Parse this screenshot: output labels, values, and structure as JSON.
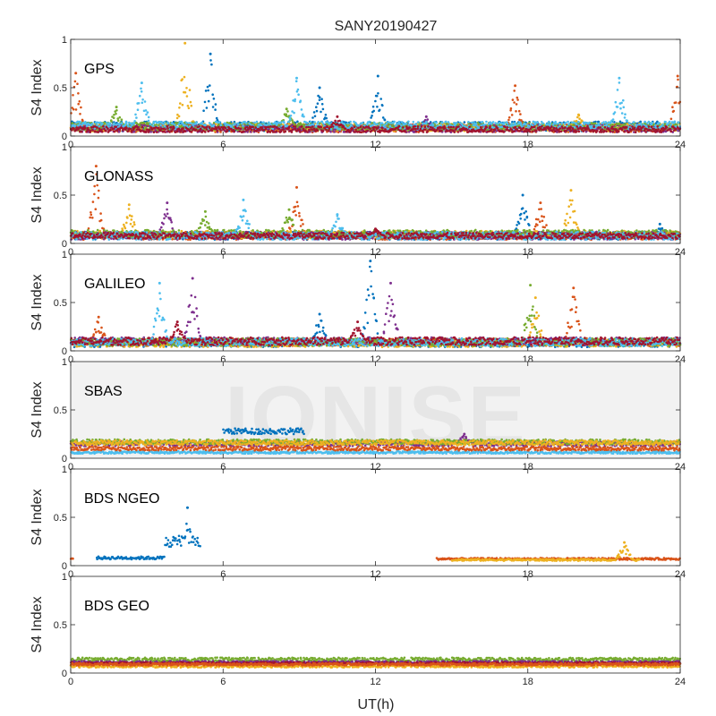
{
  "chart_data": {
    "type": "scatter",
    "title": "SANY20190427",
    "xlabel": "UT(h)",
    "ylabel": "S4 Index",
    "xlim": [
      0,
      24
    ],
    "ylim": [
      0,
      1
    ],
    "x_ticks": [
      "0",
      "6",
      "12",
      "18",
      "24"
    ],
    "y_ticks": [
      "0",
      "0.5",
      "1"
    ],
    "watermark": "IONISE",
    "series_colors": [
      "#0072BD",
      "#D95319",
      "#EDB120",
      "#7E2F8E",
      "#77AC30",
      "#4DBEEE",
      "#A2142F"
    ],
    "panels": [
      {
        "label": "GPS",
        "series": [
          {
            "color": "#0072BD",
            "segments": [
              [
                0,
                24
              ]
            ],
            "base": 0.1,
            "noise": 0.05,
            "spikes": [
              [
                5.5,
                0.85
              ],
              [
                9.8,
                0.5
              ],
              [
                12.1,
                0.62
              ]
            ]
          },
          {
            "color": "#D95319",
            "segments": [
              [
                0,
                24
              ]
            ],
            "base": 0.08,
            "noise": 0.04,
            "spikes": [
              [
                0.2,
                0.65
              ],
              [
                17.5,
                0.52
              ],
              [
                23.9,
                0.62
              ]
            ]
          },
          {
            "color": "#EDB120",
            "segments": [
              [
                0,
                24
              ]
            ],
            "base": 0.09,
            "noise": 0.04,
            "spikes": [
              [
                4.5,
                0.96
              ],
              [
                20.0,
                0.22
              ]
            ]
          },
          {
            "color": "#7E2F8E",
            "segments": [
              [
                0,
                24
              ]
            ],
            "base": 0.08,
            "noise": 0.04,
            "spikes": [
              [
                14.0,
                0.2
              ]
            ]
          },
          {
            "color": "#77AC30",
            "segments": [
              [
                0,
                24
              ]
            ],
            "base": 0.1,
            "noise": 0.04,
            "spikes": [
              [
                1.8,
                0.3
              ],
              [
                8.5,
                0.28
              ]
            ]
          },
          {
            "color": "#4DBEEE",
            "segments": [
              [
                0,
                24
              ]
            ],
            "base": 0.11,
            "noise": 0.04,
            "spikes": [
              [
                8.9,
                0.6
              ],
              [
                21.6,
                0.6
              ],
              [
                2.8,
                0.55
              ]
            ]
          },
          {
            "color": "#A2142F",
            "segments": [
              [
                0,
                24
              ]
            ],
            "base": 0.07,
            "noise": 0.03,
            "spikes": [
              [
                10.5,
                0.2
              ]
            ]
          }
        ]
      },
      {
        "label": "GLONASS",
        "series": [
          {
            "color": "#0072BD",
            "segments": [
              [
                0,
                24
              ]
            ],
            "base": 0.08,
            "noise": 0.04,
            "spikes": [
              [
                17.8,
                0.5
              ],
              [
                23.2,
                0.2
              ]
            ]
          },
          {
            "color": "#D95319",
            "segments": [
              [
                0,
                24
              ]
            ],
            "base": 0.08,
            "noise": 0.04,
            "spikes": [
              [
                1.0,
                0.8
              ],
              [
                8.9,
                0.58
              ],
              [
                18.5,
                0.42
              ]
            ]
          },
          {
            "color": "#EDB120",
            "segments": [
              [
                0,
                24
              ]
            ],
            "base": 0.09,
            "noise": 0.04,
            "spikes": [
              [
                19.7,
                0.55
              ],
              [
                2.3,
                0.4
              ]
            ]
          },
          {
            "color": "#7E2F8E",
            "segments": [
              [
                0,
                24
              ]
            ],
            "base": 0.08,
            "noise": 0.04,
            "spikes": [
              [
                3.8,
                0.42
              ]
            ]
          },
          {
            "color": "#77AC30",
            "segments": [
              [
                0,
                24
              ]
            ],
            "base": 0.1,
            "noise": 0.04,
            "spikes": [
              [
                8.6,
                0.35
              ],
              [
                5.3,
                0.33
              ]
            ]
          },
          {
            "color": "#4DBEEE",
            "segments": [
              [
                0,
                24
              ]
            ],
            "base": 0.08,
            "noise": 0.04,
            "spikes": [
              [
                6.8,
                0.45
              ],
              [
                10.5,
                0.3
              ]
            ]
          },
          {
            "color": "#A2142F",
            "segments": [
              [
                0,
                24
              ]
            ],
            "base": 0.08,
            "noise": 0.03,
            "spikes": [
              [
                12.0,
                0.15
              ]
            ]
          }
        ]
      },
      {
        "label": "GALILEO",
        "series": [
          {
            "color": "#0072BD",
            "segments": [
              [
                0,
                24
              ]
            ],
            "base": 0.08,
            "noise": 0.04,
            "spikes": [
              [
                11.8,
                0.93
              ],
              [
                9.8,
                0.38
              ]
            ]
          },
          {
            "color": "#D95319",
            "segments": [
              [
                0,
                24
              ]
            ],
            "base": 0.09,
            "noise": 0.04,
            "spikes": [
              [
                19.8,
                0.65
              ],
              [
                1.1,
                0.35
              ]
            ]
          },
          {
            "color": "#EDB120",
            "segments": [
              [
                0,
                24
              ]
            ],
            "base": 0.08,
            "noise": 0.04,
            "spikes": [
              [
                18.3,
                0.55
              ]
            ]
          },
          {
            "color": "#7E2F8E",
            "segments": [
              [
                0,
                24
              ]
            ],
            "base": 0.1,
            "noise": 0.04,
            "spikes": [
              [
                4.8,
                0.75
              ],
              [
                12.6,
                0.7
              ]
            ]
          },
          {
            "color": "#77AC30",
            "segments": [
              [
                0,
                24
              ]
            ],
            "base": 0.09,
            "noise": 0.04,
            "spikes": [
              [
                18.1,
                0.68
              ]
            ]
          },
          {
            "color": "#4DBEEE",
            "segments": [
              [
                0,
                24
              ]
            ],
            "base": 0.09,
            "noise": 0.04,
            "spikes": [
              [
                3.5,
                0.7
              ]
            ]
          },
          {
            "color": "#A2142F",
            "segments": [
              [
                0,
                24
              ]
            ],
            "base": 0.1,
            "noise": 0.04,
            "spikes": [
              [
                11.3,
                0.3
              ],
              [
                4.2,
                0.3
              ]
            ]
          }
        ]
      },
      {
        "label": "SBAS",
        "series": [
          {
            "color": "#0072BD",
            "segments": [
              [
                6,
                9.2
              ]
            ],
            "base": 0.28,
            "noise": 0.03,
            "spikes": []
          },
          {
            "color": "#7E2F8E",
            "segments": [
              [
                0,
                24
              ]
            ],
            "base": 0.15,
            "noise": 0.025,
            "spikes": [
              [
                15.5,
                0.25
              ]
            ]
          },
          {
            "color": "#77AC30",
            "segments": [
              [
                0,
                24
              ]
            ],
            "base": 0.17,
            "noise": 0.025,
            "spikes": []
          },
          {
            "color": "#EDB120",
            "segments": [
              [
                0,
                24
              ]
            ],
            "base": 0.16,
            "noise": 0.025,
            "spikes": []
          },
          {
            "color": "#4DBEEE",
            "segments": [
              [
                0,
                24
              ]
            ],
            "base": 0.06,
            "noise": 0.012,
            "spikes": []
          },
          {
            "color": "#D95319",
            "segments": [
              [
                0,
                24
              ]
            ],
            "base": 0.1,
            "noise": 0.02,
            "spikes": []
          }
        ]
      },
      {
        "label": "BDS NGEO",
        "series": [
          {
            "color": "#0072BD",
            "segments": [
              [
                1,
                5.1
              ]
            ],
            "base": 0.08,
            "noise": 0.015,
            "spikes": [
              [
                4.6,
                0.6
              ]
            ],
            "ramp": [
              [
                3.7,
                0.25
              ],
              [
                5.1,
                0.35
              ]
            ]
          },
          {
            "color": "#D95319",
            "segments": [
              [
                0,
                0.1
              ],
              [
                14.4,
                24
              ]
            ],
            "base": 0.07,
            "noise": 0.01,
            "spikes": []
          },
          {
            "color": "#EDB120",
            "segments": [
              [
                15,
                22.4
              ]
            ],
            "base": 0.06,
            "noise": 0.01,
            "spikes": [
              [
                21.8,
                0.24
              ]
            ]
          }
        ]
      },
      {
        "label": "BDS GEO",
        "series": [
          {
            "color": "#77AC30",
            "segments": [
              [
                0,
                24
              ]
            ],
            "base": 0.14,
            "noise": 0.02,
            "spikes": []
          },
          {
            "color": "#7E2F8E",
            "segments": [
              [
                0,
                24
              ]
            ],
            "base": 0.11,
            "noise": 0.015,
            "spikes": []
          },
          {
            "color": "#A2142F",
            "segments": [
              [
                0,
                24
              ]
            ],
            "base": 0.1,
            "noise": 0.012,
            "spikes": []
          },
          {
            "color": "#EDB120",
            "segments": [
              [
                0,
                24
              ]
            ],
            "base": 0.07,
            "noise": 0.012,
            "spikes": []
          },
          {
            "color": "#D95319",
            "segments": [
              [
                0,
                24
              ]
            ],
            "base": 0.09,
            "noise": 0.012,
            "spikes": []
          }
        ]
      }
    ]
  }
}
